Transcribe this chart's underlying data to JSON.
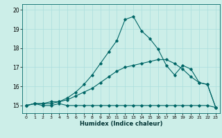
{
  "xlabel": "Humidex (Indice chaleur)",
  "background_color": "#cceee8",
  "grid_color": "#aadddd",
  "line_color": "#006666",
  "xlim": [
    -0.5,
    23.5
  ],
  "ylim": [
    14.6,
    20.3
  ],
  "yticks": [
    15,
    16,
    17,
    18,
    19,
    20
  ],
  "xticks": [
    0,
    1,
    2,
    3,
    4,
    5,
    6,
    7,
    8,
    9,
    10,
    11,
    12,
    13,
    14,
    15,
    16,
    17,
    18,
    19,
    20,
    21,
    22,
    23
  ],
  "series": [
    {
      "x": [
        0,
        1,
        2,
        3,
        4,
        5,
        6,
        7,
        8,
        9,
        10,
        11,
        12,
        13,
        14,
        15,
        16,
        17,
        18,
        19,
        20,
        21,
        22,
        23
      ],
      "y": [
        15.0,
        15.1,
        15.0,
        15.0,
        15.1,
        15.0,
        15.0,
        15.0,
        15.0,
        15.0,
        15.0,
        15.0,
        15.0,
        15.0,
        15.0,
        15.0,
        15.0,
        15.0,
        15.0,
        15.0,
        15.0,
        15.0,
        15.0,
        14.9
      ]
    },
    {
      "x": [
        0,
        1,
        2,
        3,
        4,
        5,
        6,
        7,
        8,
        9,
        10,
        11,
        12,
        13,
        14,
        15,
        16,
        17,
        18,
        19,
        20,
        21,
        22,
        23
      ],
      "y": [
        15.0,
        15.1,
        15.1,
        15.1,
        15.2,
        15.3,
        15.5,
        15.7,
        15.9,
        16.2,
        16.5,
        16.8,
        17.0,
        17.1,
        17.2,
        17.3,
        17.4,
        17.4,
        17.2,
        16.9,
        16.5,
        16.2,
        16.1,
        14.9
      ]
    },
    {
      "x": [
        0,
        1,
        2,
        3,
        4,
        5,
        6,
        7,
        8,
        9,
        10,
        11,
        12,
        13,
        14,
        15,
        16,
        17,
        18,
        19,
        20,
        21,
        22,
        23
      ],
      "y": [
        15.0,
        15.1,
        15.1,
        15.2,
        15.2,
        15.4,
        15.7,
        16.1,
        16.6,
        17.2,
        17.8,
        18.4,
        19.5,
        19.65,
        18.9,
        18.5,
        17.95,
        17.1,
        16.6,
        17.1,
        16.9,
        16.2,
        16.1,
        14.9
      ]
    }
  ]
}
